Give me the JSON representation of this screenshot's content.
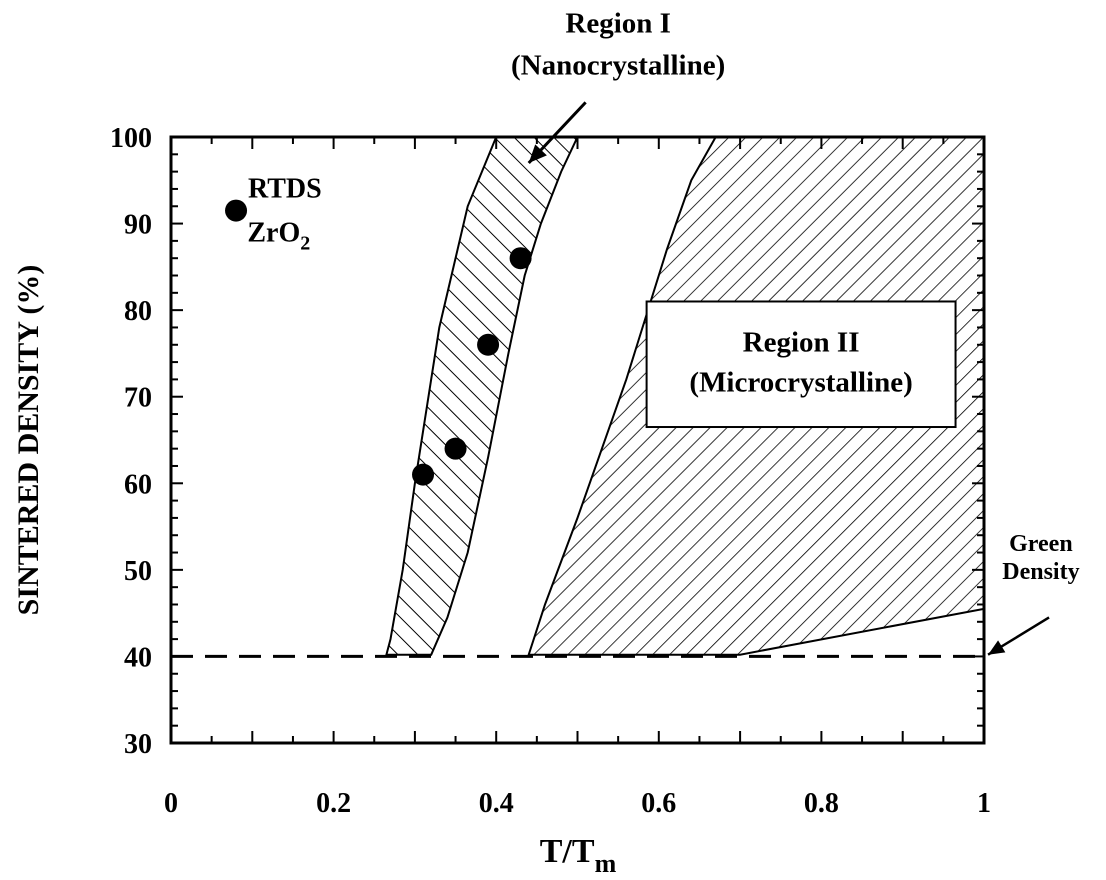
{
  "chart_data": {
    "type": "scatter",
    "xlabel": "T/Tm",
    "xlabel_main": "T/T",
    "xlabel_sub": "m",
    "ylabel": "SINTERED DENSITY (%)",
    "xlim": [
      0,
      1
    ],
    "ylim": [
      30,
      100
    ],
    "x_ticks": [
      0,
      0.2,
      0.4,
      0.6,
      0.8,
      1
    ],
    "x_tick_labels": [
      "0",
      "0.2",
      "0.4",
      "0.6",
      "0.8",
      "1"
    ],
    "y_ticks": [
      30,
      40,
      50,
      60,
      70,
      80,
      90,
      100
    ],
    "y_tick_labels": [
      "30",
      "40",
      "50",
      "60",
      "70",
      "80",
      "90",
      "100"
    ],
    "grid": false,
    "series": [
      {
        "name": "RTDS ZrO2",
        "x": [
          0.31,
          0.35,
          0.39,
          0.43
        ],
        "y": [
          61,
          64,
          76,
          86
        ]
      }
    ],
    "legend": {
      "line1": "RTDS",
      "line2_main": "ZrO",
      "line2_sub": "2",
      "marker_point": [
        0.08,
        91.5
      ],
      "text_point": [
        0.14,
        93
      ]
    },
    "region1_polygon": [
      [
        0.265,
        40.2
      ],
      [
        0.27,
        42
      ],
      [
        0.285,
        50
      ],
      [
        0.3,
        60
      ],
      [
        0.33,
        78
      ],
      [
        0.365,
        92
      ],
      [
        0.4,
        100
      ],
      [
        0.5,
        100
      ],
      [
        0.48,
        96
      ],
      [
        0.455,
        90
      ],
      [
        0.435,
        84
      ],
      [
        0.415,
        75
      ],
      [
        0.39,
        63
      ],
      [
        0.365,
        52
      ],
      [
        0.34,
        44.5
      ],
      [
        0.32,
        40.2
      ]
    ],
    "region2_polygon": [
      [
        0.44,
        40.2
      ],
      [
        0.46,
        46
      ],
      [
        0.5,
        56
      ],
      [
        0.56,
        72
      ],
      [
        0.61,
        87
      ],
      [
        0.64,
        95
      ],
      [
        0.67,
        100
      ],
      [
        1.0,
        100
      ],
      [
        1.0,
        45.5
      ],
      [
        0.7,
        40.2
      ]
    ],
    "green_density": 40,
    "region1_label": [
      "Region I",
      "(Nanocrystalline)"
    ],
    "region1_label_point": [
      0.55,
      107.2
    ],
    "region1_arrow": {
      "from": [
        0.51,
        104
      ],
      "to": [
        0.44,
        97
      ]
    },
    "region2_label": [
      "Region II",
      "(Microcrystalline)"
    ],
    "region2_box": {
      "x": [
        0.585,
        0.965
      ],
      "y": [
        66.5,
        81
      ]
    },
    "green_label": [
      "Green",
      "Density"
    ],
    "green_label_point": [
      1.07,
      51
    ],
    "green_arrow": {
      "from": [
        1.08,
        44.5
      ],
      "to": [
        1.005,
        40.2
      ]
    }
  }
}
